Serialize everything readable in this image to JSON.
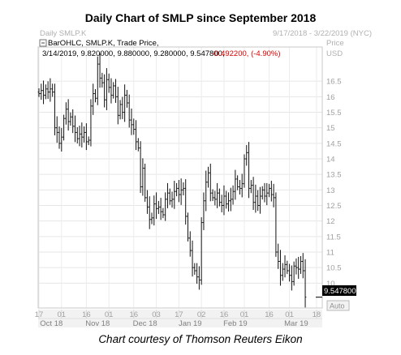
{
  "title": "Daily Chart of SMLP since September 2018",
  "caption": "Chart courtesy of Thomson Reuters Eikon",
  "header": {
    "symbol": "Daily SMLP.K",
    "date_range": "9/17/2018 - 3/22/2019 (NYC)",
    "price_label": "Price",
    "currency_label": "USD",
    "legend_text": "BarOHLC, SMLP.K, Trade Price,",
    "info_values": "3/14/2019, 9.820000, 9.880000, 9.280000, 9.547800,",
    "info_change": "-0.492200, (-4.90%)"
  },
  "last_price_label": "9.547800",
  "auto_label": "Auto",
  "chart_data": {
    "type": "ohlc",
    "ylim": [
      9.2,
      17.6
    ],
    "yticks": [
      10,
      10.5,
      11,
      11.5,
      12,
      12.5,
      13,
      13.5,
      14,
      14.5,
      15,
      15.5,
      16,
      16.5
    ],
    "xtick_days": [
      "17",
      "01",
      "16",
      "01",
      "16",
      "03",
      "17",
      "02",
      "16",
      "01",
      "16",
      "01",
      "18"
    ],
    "x_months": [
      "Oct 18",
      "Nov 18",
      "Dec 18",
      "Jan 19",
      "Feb 19",
      "Mar 19"
    ],
    "x_month_ticks": [
      0,
      10,
      21,
      31,
      42,
      52,
      62,
      72,
      82,
      91,
      102,
      111,
      123
    ],
    "month_label_pos": [
      5.5,
      26,
      47,
      67,
      87,
      114
    ],
    "last_price": 9.5478,
    "closes": [
      16.1,
      16.2,
      16.05,
      16.25,
      16.15,
      16.25,
      16.15,
      15.0,
      14.85,
      14.5,
      14.7,
      15.3,
      15.6,
      15.2,
      15.35,
      15.05,
      14.85,
      14.65,
      14.8,
      14.7,
      14.85,
      14.55,
      14.6,
      15.7,
      16.1,
      15.95,
      17.05,
      16.6,
      16.45,
      15.9,
      16.55,
      16.3,
      16.05,
      16.35,
      16.0,
      15.4,
      15.75,
      15.5,
      16.05,
      15.8,
      15.25,
      15.1,
      14.95,
      14.55,
      14.35,
      13.1,
      13.7,
      12.75,
      12.45,
      12.05,
      12.1,
      12.55,
      12.4,
      12.45,
      12.3,
      12.2,
      12.7,
      12.9,
      12.65,
      12.7,
      12.95,
      13.05,
      12.85,
      13.0,
      13.05,
      12.15,
      11.45,
      11.05,
      10.5,
      10.4,
      10.2,
      10.1,
      11.95,
      12.65,
      13.25,
      13.55,
      12.9,
      12.75,
      12.7,
      12.9,
      12.6,
      12.5,
      12.8,
      12.55,
      12.65,
      12.7,
      12.95,
      13.35,
      13.1,
      13.05,
      13.2,
      14.0,
      14.2,
      13.05,
      13.15,
      12.6,
      12.8,
      12.5,
      12.8,
      13.0,
      12.8,
      12.9,
      13.05,
      12.85,
      12.75,
      11.0,
      10.7,
      10.25,
      10.45,
      10.6,
      10.4,
      10.25,
      10.05,
      10.55,
      10.5,
      10.45,
      10.7,
      10.4,
      9.55
    ]
  }
}
